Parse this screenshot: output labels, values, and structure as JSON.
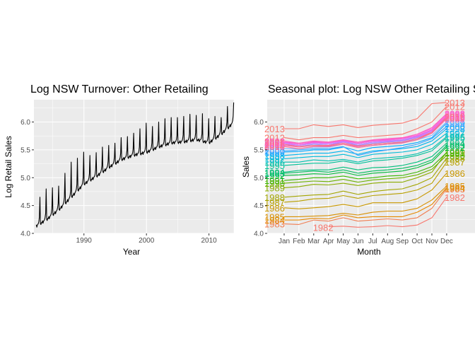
{
  "chart_data": [
    {
      "type": "line",
      "title": "Log NSW Turnover: Other Retailing",
      "xlabel": "Year",
      "ylabel": "Log Retail Sales",
      "xlim": [
        1982,
        2014
      ],
      "ylim": [
        4.0,
        6.4
      ],
      "x_ticks": [
        "1990",
        "2000",
        "2010"
      ],
      "y_ticks": [
        "4.0",
        "4.5",
        "5.0",
        "5.5",
        "6.0"
      ],
      "grid": true,
      "trend": [
        {
          "year": 1982.3,
          "value": 4.12
        },
        {
          "year": 1984,
          "value": 4.24
        },
        {
          "year": 1986,
          "value": 4.42
        },
        {
          "year": 1988,
          "value": 4.65
        },
        {
          "year": 1990,
          "value": 4.88
        },
        {
          "year": 1992,
          "value": 5.02
        },
        {
          "year": 1994,
          "value": 5.18
        },
        {
          "year": 1996,
          "value": 5.32
        },
        {
          "year": 1998,
          "value": 5.4
        },
        {
          "year": 2000,
          "value": 5.45
        },
        {
          "year": 2002,
          "value": 5.55
        },
        {
          "year": 2004,
          "value": 5.62
        },
        {
          "year": 2006,
          "value": 5.64
        },
        {
          "year": 2008,
          "value": 5.68
        },
        {
          "year": 2010,
          "value": 5.62
        },
        {
          "year": 2012,
          "value": 5.78
        },
        {
          "year": 2013.9,
          "value": 5.98
        }
      ],
      "december_peaks": [
        {
          "year": 1982.9,
          "value": 4.65
        },
        {
          "year": 1983.9,
          "value": 4.8
        },
        {
          "year": 1984.9,
          "value": 4.82
        },
        {
          "year": 1985.9,
          "value": 4.85
        },
        {
          "year": 1986.9,
          "value": 5.08
        },
        {
          "year": 1987.9,
          "value": 5.28
        },
        {
          "year": 1988.9,
          "value": 5.35
        },
        {
          "year": 1989.9,
          "value": 5.46
        },
        {
          "year": 1990.9,
          "value": 5.4
        },
        {
          "year": 1991.9,
          "value": 5.45
        },
        {
          "year": 1992.9,
          "value": 5.55
        },
        {
          "year": 1993.9,
          "value": 5.58
        },
        {
          "year": 1994.9,
          "value": 5.62
        },
        {
          "year": 1995.9,
          "value": 5.72
        },
        {
          "year": 1996.9,
          "value": 5.74
        },
        {
          "year": 1997.9,
          "value": 5.8
        },
        {
          "year": 1998.9,
          "value": 5.88
        },
        {
          "year": 1999.9,
          "value": 5.98
        },
        {
          "year": 2000.9,
          "value": 5.92
        },
        {
          "year": 2001.9,
          "value": 6.0
        },
        {
          "year": 2002.9,
          "value": 6.06
        },
        {
          "year": 2003.9,
          "value": 6.08
        },
        {
          "year": 2004.9,
          "value": 6.08
        },
        {
          "year": 2005.9,
          "value": 6.1
        },
        {
          "year": 2006.9,
          "value": 6.14
        },
        {
          "year": 2007.9,
          "value": 6.12
        },
        {
          "year": 2008.9,
          "value": 6.15
        },
        {
          "year": 2009.9,
          "value": 6.06
        },
        {
          "year": 2010.9,
          "value": 6.1
        },
        {
          "year": 2011.9,
          "value": 6.08
        },
        {
          "year": 2012.9,
          "value": 6.28
        },
        {
          "year": 2013.95,
          "value": 6.35
        }
      ]
    },
    {
      "type": "line",
      "title": "Seasonal plot: Log NSW Other Retailing S",
      "xlabel": "Month",
      "ylabel": "Sales",
      "categories": [
        "Jan",
        "Feb",
        "Mar",
        "Apr",
        "May",
        "Jun",
        "Jul",
        "Aug",
        "Sep",
        "Oct",
        "Nov",
        "Dec"
      ],
      "ylim": [
        4.0,
        6.4
      ],
      "y_ticks": [
        "4.0",
        "4.5",
        "5.0",
        "5.5",
        "6.0"
      ],
      "grid": true,
      "series": [
        {
          "name": "1982",
          "color": "#F8766D",
          "values": [
            null,
            null,
            null,
            4.12,
            4.13,
            4.11,
            4.12,
            4.14,
            4.12,
            4.15,
            4.28,
            4.65
          ]
        },
        {
          "name": "1983",
          "color": "#F07E52",
          "values": [
            4.17,
            4.16,
            4.24,
            4.22,
            4.28,
            4.22,
            4.24,
            4.26,
            4.24,
            4.28,
            4.45,
            4.8
          ]
        },
        {
          "name": "1984",
          "color": "#E58700",
          "values": [
            4.24,
            4.24,
            4.27,
            4.26,
            4.33,
            4.28,
            4.3,
            4.3,
            4.3,
            4.38,
            4.52,
            4.82
          ]
        },
        {
          "name": "1985",
          "color": "#D89000",
          "values": [
            4.3,
            4.3,
            4.31,
            4.32,
            4.36,
            4.33,
            4.38,
            4.4,
            4.4,
            4.45,
            4.6,
            4.85
          ]
        },
        {
          "name": "1986",
          "color": "#C99800",
          "values": [
            4.46,
            4.44,
            4.46,
            4.48,
            4.52,
            4.48,
            4.55,
            4.55,
            4.55,
            4.62,
            4.78,
            5.08
          ]
        },
        {
          "name": "1987",
          "color": "#B8A000",
          "values": [
            4.56,
            4.58,
            4.62,
            4.63,
            4.68,
            4.63,
            4.68,
            4.7,
            4.72,
            4.78,
            4.9,
            5.28
          ]
        },
        {
          "name": "1988",
          "color": "#A3A500",
          "values": [
            4.65,
            4.67,
            4.69,
            4.7,
            4.76,
            4.7,
            4.75,
            4.78,
            4.8,
            4.88,
            5.0,
            5.35
          ]
        },
        {
          "name": "1989",
          "color": "#8BAB00",
          "values": [
            4.82,
            4.84,
            4.88,
            4.87,
            4.9,
            4.86,
            4.9,
            4.92,
            4.92,
            5.0,
            5.1,
            5.46
          ]
        },
        {
          "name": "1990",
          "color": "#6BB100",
          "values": [
            4.9,
            4.92,
            4.94,
            4.93,
            4.97,
            4.92,
            4.96,
            4.98,
            5.0,
            5.05,
            5.15,
            5.4
          ]
        },
        {
          "name": "1991",
          "color": "#39B600",
          "values": [
            4.95,
            4.97,
            5.0,
            5.0,
            5.03,
            4.98,
            5.0,
            5.03,
            5.04,
            5.1,
            5.2,
            5.45
          ]
        },
        {
          "name": "1992",
          "color": "#00BA38",
          "values": [
            5.04,
            5.05,
            5.07,
            5.06,
            5.1,
            5.04,
            5.08,
            5.1,
            5.12,
            5.18,
            5.28,
            5.55
          ]
        },
        {
          "name": "1993",
          "color": "#00BD5F",
          "values": [
            5.08,
            5.1,
            5.12,
            5.1,
            5.14,
            5.08,
            5.12,
            5.14,
            5.17,
            5.22,
            5.32,
            5.58
          ]
        },
        {
          "name": "1994",
          "color": "#00BF7D",
          "values": [
            5.1,
            5.13,
            5.14,
            5.14,
            5.19,
            5.14,
            5.18,
            5.19,
            5.22,
            5.28,
            5.38,
            5.62
          ]
        },
        {
          "name": "1995",
          "color": "#00C097",
          "values": [
            5.22,
            5.24,
            5.26,
            5.26,
            5.3,
            5.25,
            5.3,
            5.32,
            5.35,
            5.4,
            5.48,
            5.72
          ]
        },
        {
          "name": "1996",
          "color": "#00C0AF",
          "values": [
            5.28,
            5.28,
            5.32,
            5.3,
            5.33,
            5.28,
            5.34,
            5.36,
            5.38,
            5.43,
            5.52,
            5.74
          ]
        },
        {
          "name": "1997",
          "color": "#00BCD8",
          "values": [
            5.34,
            5.36,
            5.38,
            5.38,
            5.42,
            5.36,
            5.42,
            5.44,
            5.46,
            5.5,
            5.6,
            5.8
          ]
        },
        {
          "name": "1998",
          "color": "#00B5EE",
          "values": [
            5.4,
            5.42,
            5.44,
            5.44,
            5.48,
            5.42,
            5.48,
            5.5,
            5.52,
            5.56,
            5.66,
            5.88
          ]
        },
        {
          "name": "1999",
          "color": "#00A9FF",
          "values": [
            5.46,
            5.47,
            5.5,
            5.5,
            5.55,
            5.48,
            5.54,
            5.56,
            5.58,
            5.63,
            5.72,
            5.98
          ]
        },
        {
          "name": "2000",
          "color": "#35A2FF",
          "values": [
            5.48,
            5.5,
            5.52,
            5.52,
            5.56,
            5.4,
            5.46,
            5.5,
            5.54,
            5.6,
            5.7,
            5.92
          ]
        },
        {
          "name": "2001",
          "color": "#7CAEFF",
          "values": [
            5.52,
            5.52,
            5.55,
            5.55,
            5.6,
            5.54,
            5.58,
            5.6,
            5.63,
            5.68,
            5.76,
            6.0
          ]
        },
        {
          "name": "2002",
          "color": "#9590FF",
          "values": [
            5.58,
            5.56,
            5.6,
            5.58,
            5.64,
            5.58,
            5.62,
            5.64,
            5.66,
            5.72,
            5.82,
            6.06
          ]
        },
        {
          "name": "2003",
          "color": "#B983FF",
          "values": [
            5.6,
            5.58,
            5.62,
            5.6,
            5.65,
            5.6,
            5.64,
            5.66,
            5.68,
            5.74,
            5.84,
            6.08
          ]
        },
        {
          "name": "2004",
          "color": "#CF78FF",
          "values": [
            5.62,
            5.58,
            5.62,
            5.6,
            5.64,
            5.6,
            5.64,
            5.65,
            5.67,
            5.73,
            5.82,
            6.08
          ]
        },
        {
          "name": "2005",
          "color": "#E76BF3",
          "values": [
            5.63,
            5.6,
            5.63,
            5.62,
            5.66,
            5.62,
            5.66,
            5.67,
            5.7,
            5.75,
            5.85,
            6.1
          ]
        },
        {
          "name": "2006",
          "color": "#F564E3",
          "values": [
            5.64,
            5.62,
            5.65,
            5.64,
            5.68,
            5.62,
            5.67,
            5.69,
            5.71,
            5.78,
            5.88,
            6.14
          ]
        },
        {
          "name": "2007",
          "color": "#FD61D1",
          "values": [
            5.64,
            5.6,
            5.64,
            5.63,
            5.67,
            5.62,
            5.66,
            5.68,
            5.7,
            5.76,
            5.86,
            6.12
          ]
        },
        {
          "name": "2008",
          "color": "#FF62BC",
          "values": [
            5.66,
            5.62,
            5.66,
            5.64,
            5.68,
            5.64,
            5.68,
            5.7,
            5.72,
            5.78,
            5.9,
            6.15
          ]
        },
        {
          "name": "2009",
          "color": "#FF65AC",
          "values": [
            5.58,
            5.55,
            5.58,
            5.57,
            5.6,
            5.56,
            5.6,
            5.62,
            5.64,
            5.7,
            5.8,
            6.06
          ]
        },
        {
          "name": "2010",
          "color": "#FF6A98",
          "values": [
            5.56,
            5.52,
            5.56,
            5.56,
            5.6,
            5.54,
            5.58,
            5.6,
            5.62,
            5.68,
            5.8,
            6.1
          ]
        },
        {
          "name": "2011",
          "color": "#FB6F86",
          "values": [
            5.6,
            5.56,
            5.58,
            5.58,
            5.62,
            5.57,
            5.6,
            5.62,
            5.64,
            5.7,
            5.82,
            6.08
          ]
        },
        {
          "name": "2012",
          "color": "#F8766D",
          "values": [
            5.72,
            5.68,
            5.72,
            5.72,
            5.76,
            5.72,
            5.74,
            5.76,
            5.78,
            5.88,
            6.0,
            6.28
          ]
        },
        {
          "name": "2013",
          "color": "#F8766D",
          "values": [
            5.88,
            5.88,
            5.95,
            5.92,
            5.95,
            5.9,
            5.94,
            5.96,
            5.98,
            6.06,
            6.33,
            6.35
          ]
        }
      ],
      "label_left": [
        "2013",
        "1985",
        "1984",
        "1983",
        "1988",
        "1987",
        "1986"
      ],
      "label_mid": "1982",
      "label_right": [
        "2013",
        "1986",
        "1985",
        "1984",
        "1982"
      ]
    }
  ]
}
